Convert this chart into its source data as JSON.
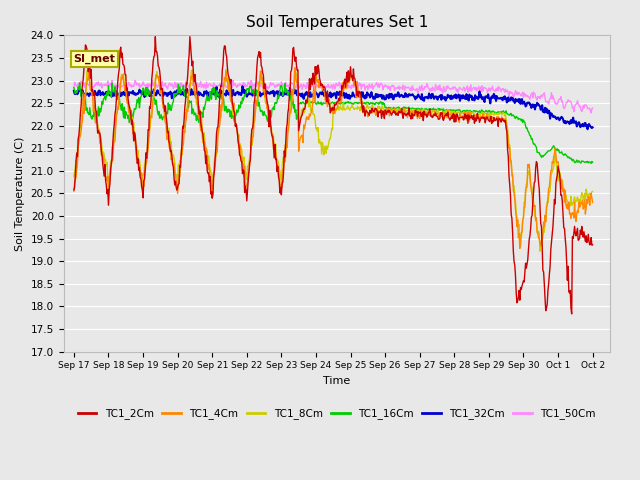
{
  "title": "Soil Temperatures Set 1",
  "xlabel": "Time",
  "ylabel": "Soil Temperature (C)",
  "ylim": [
    17.0,
    24.0
  ],
  "yticks": [
    17.0,
    17.5,
    18.0,
    18.5,
    19.0,
    19.5,
    20.0,
    20.5,
    21.0,
    21.5,
    22.0,
    22.5,
    23.0,
    23.5,
    24.0
  ],
  "bg_color": "#e8e8e8",
  "plot_bg_color": "#e8e8e8",
  "grid_color": "#ffffff",
  "series": {
    "TC1_2Cm": {
      "color": "#cc0000",
      "lw": 1.0
    },
    "TC1_4Cm": {
      "color": "#ff8800",
      "lw": 1.0
    },
    "TC1_8Cm": {
      "color": "#cccc00",
      "lw": 1.0
    },
    "TC1_16Cm": {
      "color": "#00cc00",
      "lw": 1.0
    },
    "TC1_32Cm": {
      "color": "#0000cc",
      "lw": 1.5
    },
    "TC1_50Cm": {
      "color": "#ff88ff",
      "lw": 1.0
    }
  },
  "annotation_text": "SI_met",
  "x_tick_labels": [
    "Sep 17",
    "Sep 18",
    "Sep 19",
    "Sep 20",
    "Sep 21",
    "Sep 22",
    "Sep 23",
    "Sep 24",
    "Sep 25",
    "Sep 26",
    "Sep 27",
    "Sep 28",
    "Sep 29",
    "Sep 30",
    "Oct 1",
    "Oct 2"
  ]
}
